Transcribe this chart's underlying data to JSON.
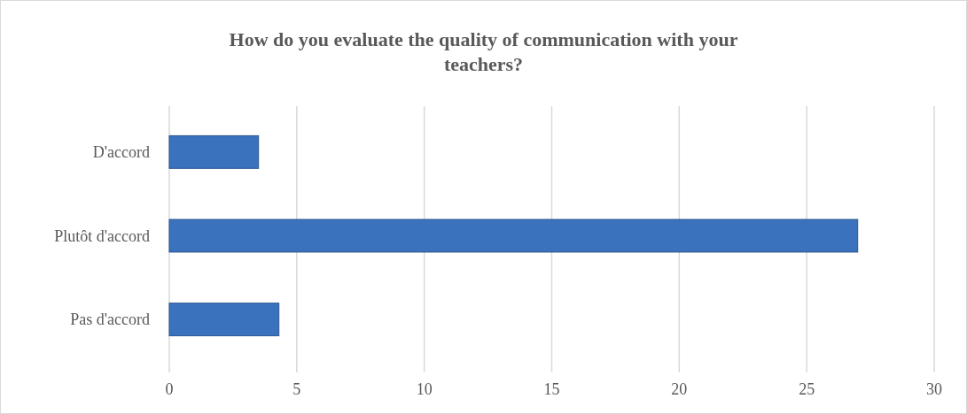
{
  "chart_data": {
    "type": "bar",
    "orientation": "horizontal",
    "title": "How do you evaluate the quality of communication with your teachers?",
    "categories": [
      "D'accord",
      "Plutôt d'accord",
      "Pas d'accord"
    ],
    "values": [
      3.5,
      27,
      4.3
    ],
    "color": "#3a72bd",
    "xlim": [
      0,
      30
    ],
    "xticks": [
      0,
      5,
      10,
      15,
      20,
      25,
      30
    ],
    "grid": "x"
  }
}
